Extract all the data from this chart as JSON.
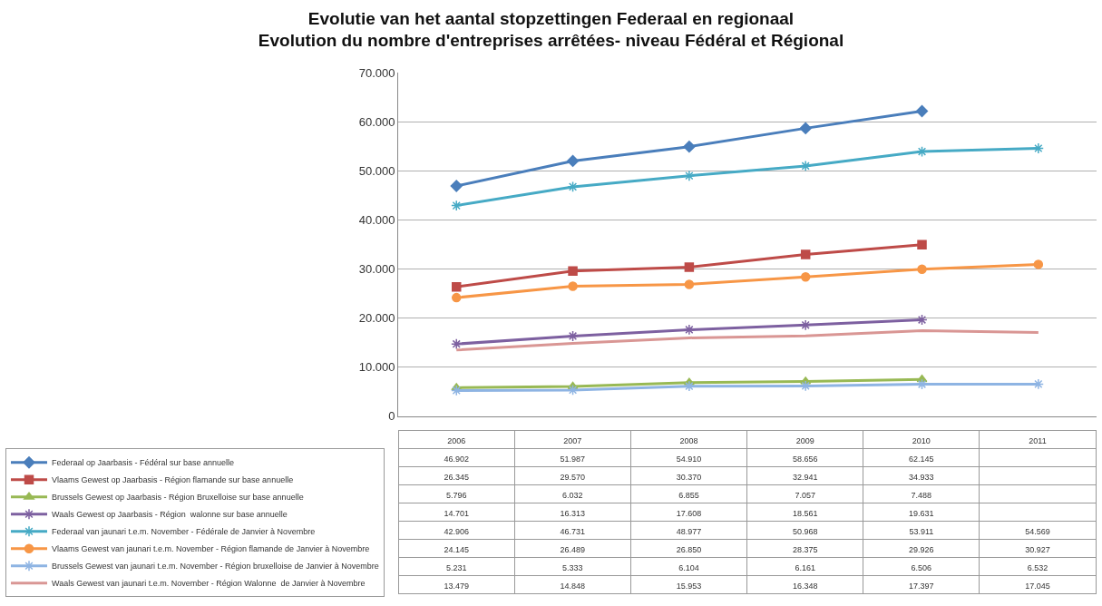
{
  "chart_data": {
    "type": "line",
    "title": "Evolutie van het aantal stopzettingen Federaal en regionaal",
    "subtitle": "Evolution du nombre d'entreprises arrêtées- niveau Fédéral et Régional",
    "categories": [
      "2006",
      "2007",
      "2008",
      "2009",
      "2010",
      "2011"
    ],
    "ylim": [
      0,
      70000
    ],
    "yticks": [
      {
        "value": 0,
        "label": "0"
      },
      {
        "value": 10000,
        "label": "10.000"
      },
      {
        "value": 20000,
        "label": "20.000"
      },
      {
        "value": 30000,
        "label": "30.000"
      },
      {
        "value": 40000,
        "label": "40.000"
      },
      {
        "value": 50000,
        "label": "50.000"
      },
      {
        "value": 60000,
        "label": "60.000"
      },
      {
        "value": 70000,
        "label": "70.000"
      }
    ],
    "grid": "y",
    "legend": "bottom left",
    "series": [
      {
        "name": "Federaal op Jaarbasis - Fédéral sur base annuelle",
        "color": "#4a7ebb",
        "marker": "diamond",
        "values": [
          46902,
          51987,
          54910,
          58656,
          62145,
          null
        ],
        "value_labels": [
          "46.902",
          "51.987",
          "54.910",
          "58.656",
          "62.145",
          null
        ]
      },
      {
        "name": "Vlaams Gewest op Jaarbasis - Région flamande sur base annuelle",
        "color": "#be4b48",
        "marker": "square",
        "values": [
          26345,
          29570,
          30370,
          32941,
          34933,
          null
        ],
        "value_labels": [
          "26.345",
          "29.570",
          "30.370",
          "32.941",
          "34.933",
          null
        ]
      },
      {
        "name": "Brussels Gewest op Jaarbasis - Région Bruxelloise sur base annuelle",
        "color": "#98b954",
        "marker": "triangle",
        "values": [
          5796,
          6032,
          6855,
          7057,
          7488,
          null
        ],
        "value_labels": [
          "5.796",
          "6.032",
          "6.855",
          "7.057",
          "7.488",
          null
        ]
      },
      {
        "name": "Waals Gewest op Jaarbasis - Région  walonne sur base annuelle",
        "color": "#7d60a0",
        "marker": "cross",
        "values": [
          14701,
          16313,
          17608,
          18561,
          19631,
          null
        ],
        "value_labels": [
          "14.701",
          "16.313",
          "17.608",
          "18.561",
          "19.631",
          null
        ]
      },
      {
        "name": "Federaal van jaunari t.e.m. November - Fédérale de Janvier à Novembre",
        "color": "#46aac5",
        "marker": "cross",
        "values": [
          42906,
          46731,
          48977,
          50968,
          53911,
          54569
        ],
        "value_labels": [
          "42.906",
          "46.731",
          "48.977",
          "50.968",
          "53.911",
          "54.569"
        ]
      },
      {
        "name": "Vlaams Gewest van jaunari t.e.m. November - Région flamande de Janvier à Novembre",
        "color": "#f79646",
        "marker": "circle",
        "values": [
          24145,
          26489,
          26850,
          28375,
          29926,
          30927
        ],
        "value_labels": [
          "24.145",
          "26.489",
          "26.850",
          "28.375",
          "29.926",
          "30.927"
        ]
      },
      {
        "name": "Brussels Gewest van jaunari t.e.m. November - Région bruxelloise de Janvier à Novembre",
        "color": "#8eb4e3",
        "marker": "cross",
        "values": [
          5231,
          5333,
          6104,
          6161,
          6506,
          6532
        ],
        "value_labels": [
          "5.231",
          "5.333",
          "6.104",
          "6.161",
          "6.506",
          "6.532"
        ]
      },
      {
        "name": "Waals Gewest van jaunari t.e.m. November - Région Walonne  de Janvier à Novembre",
        "color": "#d99694",
        "marker": "none",
        "values": [
          13479,
          14848,
          15953,
          16348,
          17397,
          17045
        ],
        "value_labels": [
          "13.479",
          "14.848",
          "15.953",
          "16.348",
          "17.397",
          "17.045"
        ]
      }
    ]
  }
}
